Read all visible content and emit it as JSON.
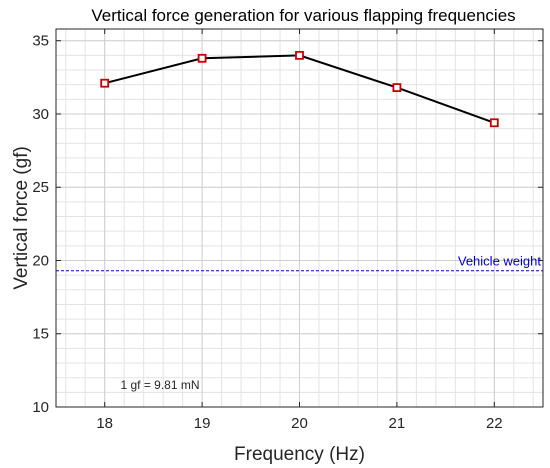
{
  "chart_data": {
    "type": "line",
    "title": "Vertical force generation for various flapping frequencies",
    "xlabel": "Frequency (Hz)",
    "ylabel": "Vertical force (gf)",
    "x": [
      18,
      19,
      20,
      21,
      22
    ],
    "series": [
      {
        "values": [
          32.1,
          33.8,
          34.0,
          31.8,
          29.4
        ],
        "color": "#000000",
        "marker": "square",
        "marker_color": "#cc0000"
      }
    ],
    "xlim": [
      17.5,
      22.5
    ],
    "ylim": [
      10,
      35.8
    ],
    "xticks": [
      18,
      19,
      20,
      21,
      22
    ],
    "yticks": [
      10,
      15,
      20,
      25,
      30,
      35
    ],
    "grid": true,
    "minor_grid": true,
    "reference_line": {
      "y": 19.3,
      "label": "Vehicle weight",
      "color": "#0000cc",
      "style": "dashed"
    },
    "annotation": "1 gf = 9.81 mN"
  }
}
